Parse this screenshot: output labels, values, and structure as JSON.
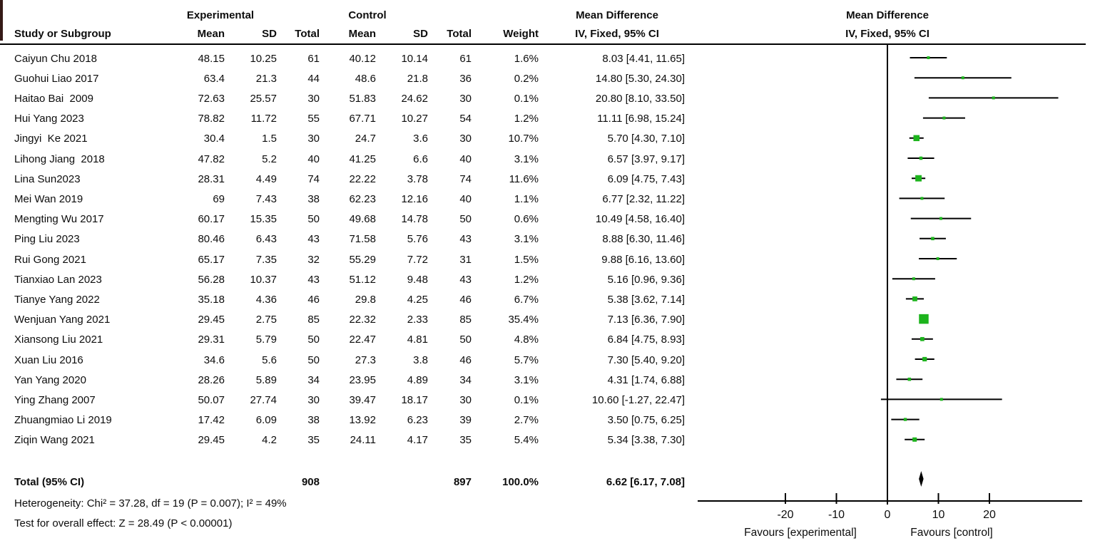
{
  "chart_data": {
    "type": "forest",
    "effect_measure": "Mean Difference",
    "method": "IV, Fixed, 95% CI",
    "columns": {
      "study": "Study or Subgroup",
      "mean": "Mean",
      "sd": "SD",
      "total": "Total",
      "weight": "Weight",
      "experimental_group": "Experimental",
      "control_group": "Control",
      "md_title": "Mean Difference",
      "md_subtitle": "IV, Fixed, 95% CI"
    },
    "studies": [
      {
        "name": "Caiyun Chu 2018",
        "e_mean": "48.15",
        "e_sd": "10.25",
        "e_total": "61",
        "c_mean": "40.12",
        "c_sd": "10.14",
        "c_total": "61",
        "weight": "1.6%",
        "ci_text": "8.03 [4.41, 11.65]",
        "estimate": 8.03,
        "ci_lower": 4.41,
        "ci_upper": 11.65,
        "weight_pct": 1.6
      },
      {
        "name": "Guohui Liao 2017",
        "e_mean": "63.4",
        "e_sd": "21.3",
        "e_total": "44",
        "c_mean": "48.6",
        "c_sd": "21.8",
        "c_total": "36",
        "weight": "0.2%",
        "ci_text": "14.80 [5.30, 24.30]",
        "estimate": 14.8,
        "ci_lower": 5.3,
        "ci_upper": 24.3,
        "weight_pct": 0.2
      },
      {
        "name": "Haitao Bai  2009",
        "e_mean": "72.63",
        "e_sd": "25.57",
        "e_total": "30",
        "c_mean": "51.83",
        "c_sd": "24.62",
        "c_total": "30",
        "weight": "0.1%",
        "ci_text": "20.80 [8.10, 33.50]",
        "estimate": 20.8,
        "ci_lower": 8.1,
        "ci_upper": 33.5,
        "weight_pct": 0.1
      },
      {
        "name": "Hui Yang 2023",
        "e_mean": "78.82",
        "e_sd": "11.72",
        "e_total": "55",
        "c_mean": "67.71",
        "c_sd": "10.27",
        "c_total": "54",
        "weight": "1.2%",
        "ci_text": "11.11 [6.98, 15.24]",
        "estimate": 11.11,
        "ci_lower": 6.98,
        "ci_upper": 15.24,
        "weight_pct": 1.2
      },
      {
        "name": "Jingyi  Ke 2021",
        "e_mean": "30.4",
        "e_sd": "1.5",
        "e_total": "30",
        "c_mean": "24.7",
        "c_sd": "3.6",
        "c_total": "30",
        "weight": "10.7%",
        "ci_text": "5.70 [4.30, 7.10]",
        "estimate": 5.7,
        "ci_lower": 4.3,
        "ci_upper": 7.1,
        "weight_pct": 10.7
      },
      {
        "name": "Lihong Jiang  2018",
        "e_mean": "47.82",
        "e_sd": "5.2",
        "e_total": "40",
        "c_mean": "41.25",
        "c_sd": "6.6",
        "c_total": "40",
        "weight": "3.1%",
        "ci_text": "6.57 [3.97, 9.17]",
        "estimate": 6.57,
        "ci_lower": 3.97,
        "ci_upper": 9.17,
        "weight_pct": 3.1
      },
      {
        "name": "Lina Sun2023",
        "e_mean": "28.31",
        "e_sd": "4.49",
        "e_total": "74",
        "c_mean": "22.22",
        "c_sd": "3.78",
        "c_total": "74",
        "weight": "11.6%",
        "ci_text": "6.09 [4.75, 7.43]",
        "estimate": 6.09,
        "ci_lower": 4.75,
        "ci_upper": 7.43,
        "weight_pct": 11.6
      },
      {
        "name": "Mei Wan 2019",
        "e_mean": "69",
        "e_sd": "7.43",
        "e_total": "38",
        "c_mean": "62.23",
        "c_sd": "12.16",
        "c_total": "40",
        "weight": "1.1%",
        "ci_text": "6.77 [2.32, 11.22]",
        "estimate": 6.77,
        "ci_lower": 2.32,
        "ci_upper": 11.22,
        "weight_pct": 1.1
      },
      {
        "name": "Mengting Wu 2017",
        "e_mean": "60.17",
        "e_sd": "15.35",
        "e_total": "50",
        "c_mean": "49.68",
        "c_sd": "14.78",
        "c_total": "50",
        "weight": "0.6%",
        "ci_text": "10.49 [4.58, 16.40]",
        "estimate": 10.49,
        "ci_lower": 4.58,
        "ci_upper": 16.4,
        "weight_pct": 0.6
      },
      {
        "name": "Ping Liu 2023",
        "e_mean": "80.46",
        "e_sd": "6.43",
        "e_total": "43",
        "c_mean": "71.58",
        "c_sd": "5.76",
        "c_total": "43",
        "weight": "3.1%",
        "ci_text": "8.88 [6.30, 11.46]",
        "estimate": 8.88,
        "ci_lower": 6.3,
        "ci_upper": 11.46,
        "weight_pct": 3.1
      },
      {
        "name": "Rui Gong 2021",
        "e_mean": "65.17",
        "e_sd": "7.35",
        "e_total": "32",
        "c_mean": "55.29",
        "c_sd": "7.72",
        "c_total": "31",
        "weight": "1.5%",
        "ci_text": "9.88 [6.16, 13.60]",
        "estimate": 9.88,
        "ci_lower": 6.16,
        "ci_upper": 13.6,
        "weight_pct": 1.5
      },
      {
        "name": "Tianxiao Lan 2023",
        "e_mean": "56.28",
        "e_sd": "10.37",
        "e_total": "43",
        "c_mean": "51.12",
        "c_sd": "9.48",
        "c_total": "43",
        "weight": "1.2%",
        "ci_text": "5.16 [0.96, 9.36]",
        "estimate": 5.16,
        "ci_lower": 0.96,
        "ci_upper": 9.36,
        "weight_pct": 1.2
      },
      {
        "name": "Tianye Yang 2022",
        "e_mean": "35.18",
        "e_sd": "4.36",
        "e_total": "46",
        "c_mean": "29.8",
        "c_sd": "4.25",
        "c_total": "46",
        "weight": "6.7%",
        "ci_text": "5.38 [3.62, 7.14]",
        "estimate": 5.38,
        "ci_lower": 3.62,
        "ci_upper": 7.14,
        "weight_pct": 6.7
      },
      {
        "name": "Wenjuan Yang 2021",
        "e_mean": "29.45",
        "e_sd": "2.75",
        "e_total": "85",
        "c_mean": "22.32",
        "c_sd": "2.33",
        "c_total": "85",
        "weight": "35.4%",
        "ci_text": "7.13 [6.36, 7.90]",
        "estimate": 7.13,
        "ci_lower": 6.36,
        "ci_upper": 7.9,
        "weight_pct": 35.4
      },
      {
        "name": "Xiansong Liu 2021",
        "e_mean": "29.31",
        "e_sd": "5.79",
        "e_total": "50",
        "c_mean": "22.47",
        "c_sd": "4.81",
        "c_total": "50",
        "weight": "4.8%",
        "ci_text": "6.84 [4.75, 8.93]",
        "estimate": 6.84,
        "ci_lower": 4.75,
        "ci_upper": 8.93,
        "weight_pct": 4.8
      },
      {
        "name": "Xuan Liu 2016",
        "e_mean": "34.6",
        "e_sd": "5.6",
        "e_total": "50",
        "c_mean": "27.3",
        "c_sd": "3.8",
        "c_total": "46",
        "weight": "5.7%",
        "ci_text": "7.30 [5.40, 9.20]",
        "estimate": 7.3,
        "ci_lower": 5.4,
        "ci_upper": 9.2,
        "weight_pct": 5.7
      },
      {
        "name": "Yan Yang 2020",
        "e_mean": "28.26",
        "e_sd": "5.89",
        "e_total": "34",
        "c_mean": "23.95",
        "c_sd": "4.89",
        "c_total": "34",
        "weight": "3.1%",
        "ci_text": "4.31 [1.74, 6.88]",
        "estimate": 4.31,
        "ci_lower": 1.74,
        "ci_upper": 6.88,
        "weight_pct": 3.1
      },
      {
        "name": "Ying Zhang 2007",
        "e_mean": "50.07",
        "e_sd": "27.74",
        "e_total": "30",
        "c_mean": "39.47",
        "c_sd": "18.17",
        "c_total": "30",
        "weight": "0.1%",
        "ci_text": "10.60 [-1.27, 22.47]",
        "estimate": 10.6,
        "ci_lower": -1.27,
        "ci_upper": 22.47,
        "weight_pct": 0.1
      },
      {
        "name": "Zhuangmiao Li 2019",
        "e_mean": "17.42",
        "e_sd": "6.09",
        "e_total": "38",
        "c_mean": "13.92",
        "c_sd": "6.23",
        "c_total": "39",
        "weight": "2.7%",
        "ci_text": "3.50 [0.75, 6.25]",
        "estimate": 3.5,
        "ci_lower": 0.75,
        "ci_upper": 6.25,
        "weight_pct": 2.7
      },
      {
        "name": "Ziqin Wang 2021",
        "e_mean": "29.45",
        "e_sd": "4.2",
        "e_total": "35",
        "c_mean": "24.11",
        "c_sd": "4.17",
        "c_total": "35",
        "weight": "5.4%",
        "ci_text": "5.34 [3.38, 7.30]",
        "estimate": 5.34,
        "ci_lower": 3.38,
        "ci_upper": 7.3,
        "weight_pct": 5.4
      }
    ],
    "total": {
      "label": "Total (95% CI)",
      "experimental_total": "908",
      "control_total": "897",
      "weight": "100.0%",
      "ci_text": "6.62 [6.17, 7.08]",
      "estimate": 6.62,
      "ci_lower": 6.17,
      "ci_upper": 7.08
    },
    "heterogeneity": "Heterogeneity: Chi² = 37.28, df = 19 (P = 0.007); I² = 49%",
    "overall_effect": "Test for overall effect: Z = 28.49 (P < 0.00001)",
    "axis": {
      "ticks": [
        -20,
        -10,
        0,
        10,
        20
      ],
      "xlim": [
        -37,
        38
      ],
      "favours_left": "Favours [experimental]",
      "favours_right": "Favours [control]"
    },
    "colors": {
      "marker_green": "#1db41d",
      "line_black": "#000000",
      "text_black": "#0d0d0d",
      "artifact_maroon": "#351a17"
    }
  }
}
